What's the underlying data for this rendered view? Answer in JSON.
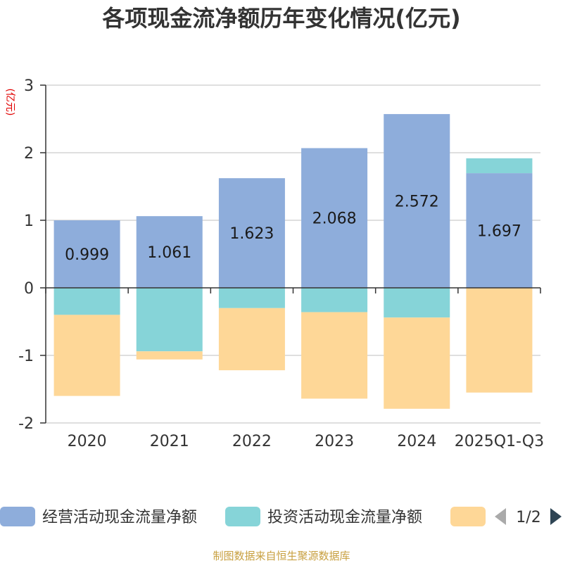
{
  "chart_data": {
    "type": "bar",
    "stacked": true,
    "title": "各项现金流净额历年变化情况(亿元)",
    "ylabel": "(亿元)",
    "xlabel": "",
    "ylim": [
      -2,
      3
    ],
    "yticks": [
      3,
      2,
      1,
      0,
      -1,
      -2
    ],
    "categories": [
      "2020",
      "2021",
      "2022",
      "2023",
      "2024",
      "2025Q1-Q3"
    ],
    "series": [
      {
        "name": "经营活动现金流量净额",
        "color": "#8eaddb",
        "values": [
          0.999,
          1.061,
          1.623,
          2.068,
          2.572,
          1.697
        ],
        "labels": [
          "0.999",
          "1.061",
          "1.623",
          "2.068",
          "2.572",
          "1.697"
        ]
      },
      {
        "name": "投资活动现金流量净额",
        "color": "#86d4d8",
        "values": [
          -0.4,
          -0.94,
          -0.3,
          -0.36,
          -0.44,
          0.22
        ]
      },
      {
        "name": "",
        "color": "#fed797",
        "values": [
          -1.2,
          -0.12,
          -0.92,
          -1.28,
          -1.35,
          -1.55
        ]
      }
    ]
  },
  "legend": {
    "pager": "1/2"
  },
  "footer": "制图数据来自恒生聚源数据库"
}
